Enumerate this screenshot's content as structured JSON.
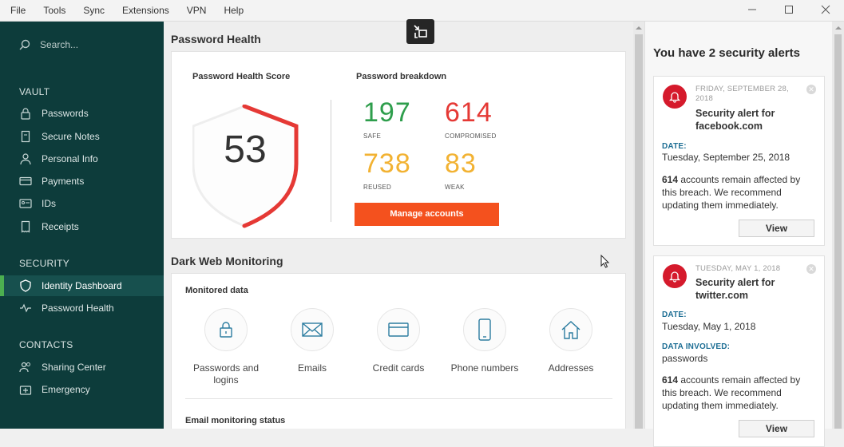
{
  "menu": [
    "File",
    "Tools",
    "Sync",
    "Extensions",
    "VPN",
    "Help"
  ],
  "sidebar": {
    "search_placeholder": "Search...",
    "sections": {
      "vault": "VAULT",
      "security": "SECURITY",
      "contacts": "CONTACTS"
    },
    "vault_items": [
      {
        "label": "Passwords",
        "icon": "lock-icon"
      },
      {
        "label": "Secure Notes",
        "icon": "note-icon"
      },
      {
        "label": "Personal Info",
        "icon": "person-icon"
      },
      {
        "label": "Payments",
        "icon": "card-icon"
      },
      {
        "label": "IDs",
        "icon": "id-card-icon"
      },
      {
        "label": "Receipts",
        "icon": "receipt-icon"
      }
    ],
    "security_items": [
      {
        "label": "Identity Dashboard",
        "icon": "shield-icon",
        "active": true
      },
      {
        "label": "Password Health",
        "icon": "pulse-icon"
      }
    ],
    "contact_items": [
      {
        "label": "Sharing Center",
        "icon": "people-icon"
      },
      {
        "label": "Emergency",
        "icon": "emergency-icon"
      }
    ]
  },
  "password_health": {
    "title": "Password Health",
    "score_label": "Password Health Score",
    "score": "53",
    "score_fraction": 0.53,
    "breakdown_label": "Password breakdown",
    "safe": {
      "value": "197",
      "label": "SAFE",
      "color": "#2e9e4c"
    },
    "compromised": {
      "value": "614",
      "label": "COMPROMISED",
      "color": "#e53935"
    },
    "reused": {
      "value": "738",
      "label": "REUSED",
      "color": "#f2b232"
    },
    "weak": {
      "value": "83",
      "label": "WEAK",
      "color": "#f2b232"
    },
    "manage_button": "Manage accounts"
  },
  "dark_web": {
    "title": "Dark Web Monitoring",
    "monitored_label": "Monitored data",
    "items": [
      {
        "label": "Passwords and logins",
        "icon": "lock-icon"
      },
      {
        "label": "Emails",
        "icon": "envelope-icon"
      },
      {
        "label": "Credit cards",
        "icon": "credit-card-icon"
      },
      {
        "label": "Phone numbers",
        "icon": "phone-icon"
      },
      {
        "label": "Addresses",
        "icon": "house-icon"
      }
    ],
    "email_status_label": "Email monitoring status"
  },
  "alerts": {
    "title": "You have 2 security alerts",
    "items": [
      {
        "date": "FRIDAY, SEPTEMBER 28, 2018",
        "title": "Security alert for facebook.com",
        "date_label": "DATE:",
        "date_value": "Tuesday, September 25, 2018",
        "count": "614",
        "message": " accounts remain affected by this breach. We recommend updating them immediately.",
        "view": "View"
      },
      {
        "date": "TUESDAY, MAY 1, 2018",
        "title": "Security alert for twitter.com",
        "date_label": "DATE:",
        "date_value": "Tuesday, May 1, 2018",
        "involved_label": "DATA INVOLVED:",
        "involved_value": "passwords",
        "count": "614",
        "message": " accounts remain affected by this breach. We recommend updating them immediately.",
        "view": "View"
      }
    ]
  },
  "colors": {
    "sidebar": "#0d3c3b",
    "accent_orange": "#f4511e",
    "alert_red": "#d51a2c",
    "active_bar": "#4caf50"
  }
}
